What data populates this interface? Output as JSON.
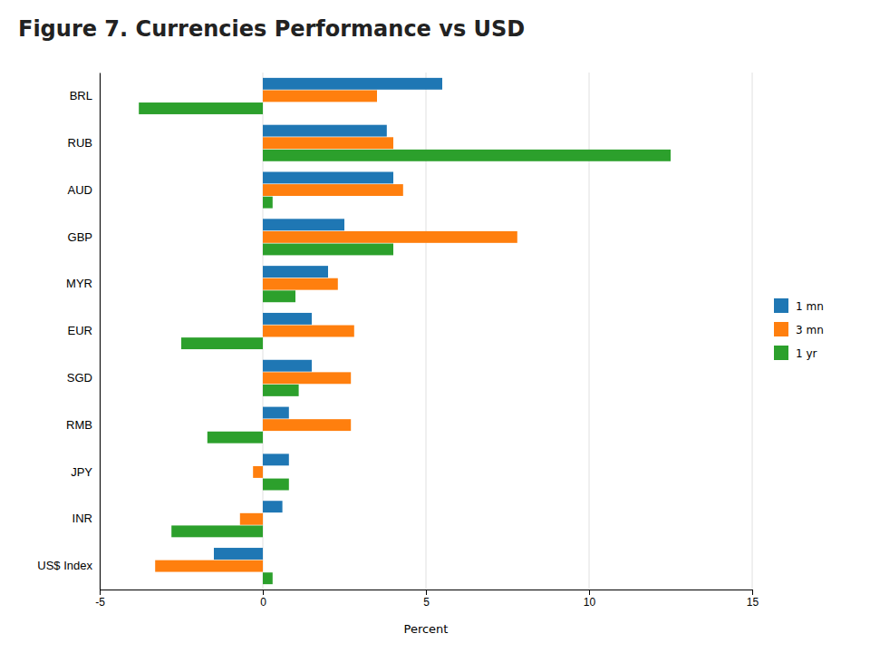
{
  "chart_data": {
    "type": "bar",
    "orientation": "horizontal",
    "title": "Figure 7. Currencies Performance vs USD",
    "categories": [
      "BRL",
      "RUB",
      "AUD",
      "GBP",
      "MYR",
      "EUR",
      "SGD",
      "RMB",
      "JPY",
      "INR",
      "US$ Index"
    ],
    "series": [
      {
        "name": "1 mn",
        "values": [
          5.5,
          3.8,
          4.0,
          2.5,
          2.0,
          1.5,
          1.5,
          0.8,
          0.8,
          0.6,
          -1.5
        ]
      },
      {
        "name": "3 mn",
        "values": [
          3.5,
          4.0,
          4.3,
          7.8,
          2.3,
          2.8,
          2.7,
          2.7,
          -0.3,
          -0.7,
          -3.3
        ]
      },
      {
        "name": "1 yr",
        "values": [
          -3.8,
          12.5,
          0.3,
          4.0,
          1.0,
          -2.5,
          1.1,
          -1.7,
          0.8,
          -2.8,
          0.3
        ]
      }
    ],
    "xlabel": "Percent",
    "xlim": [
      -5,
      15
    ],
    "xticks": [
      -5,
      0,
      5,
      10,
      15
    ],
    "grid": true,
    "legend": "right"
  }
}
